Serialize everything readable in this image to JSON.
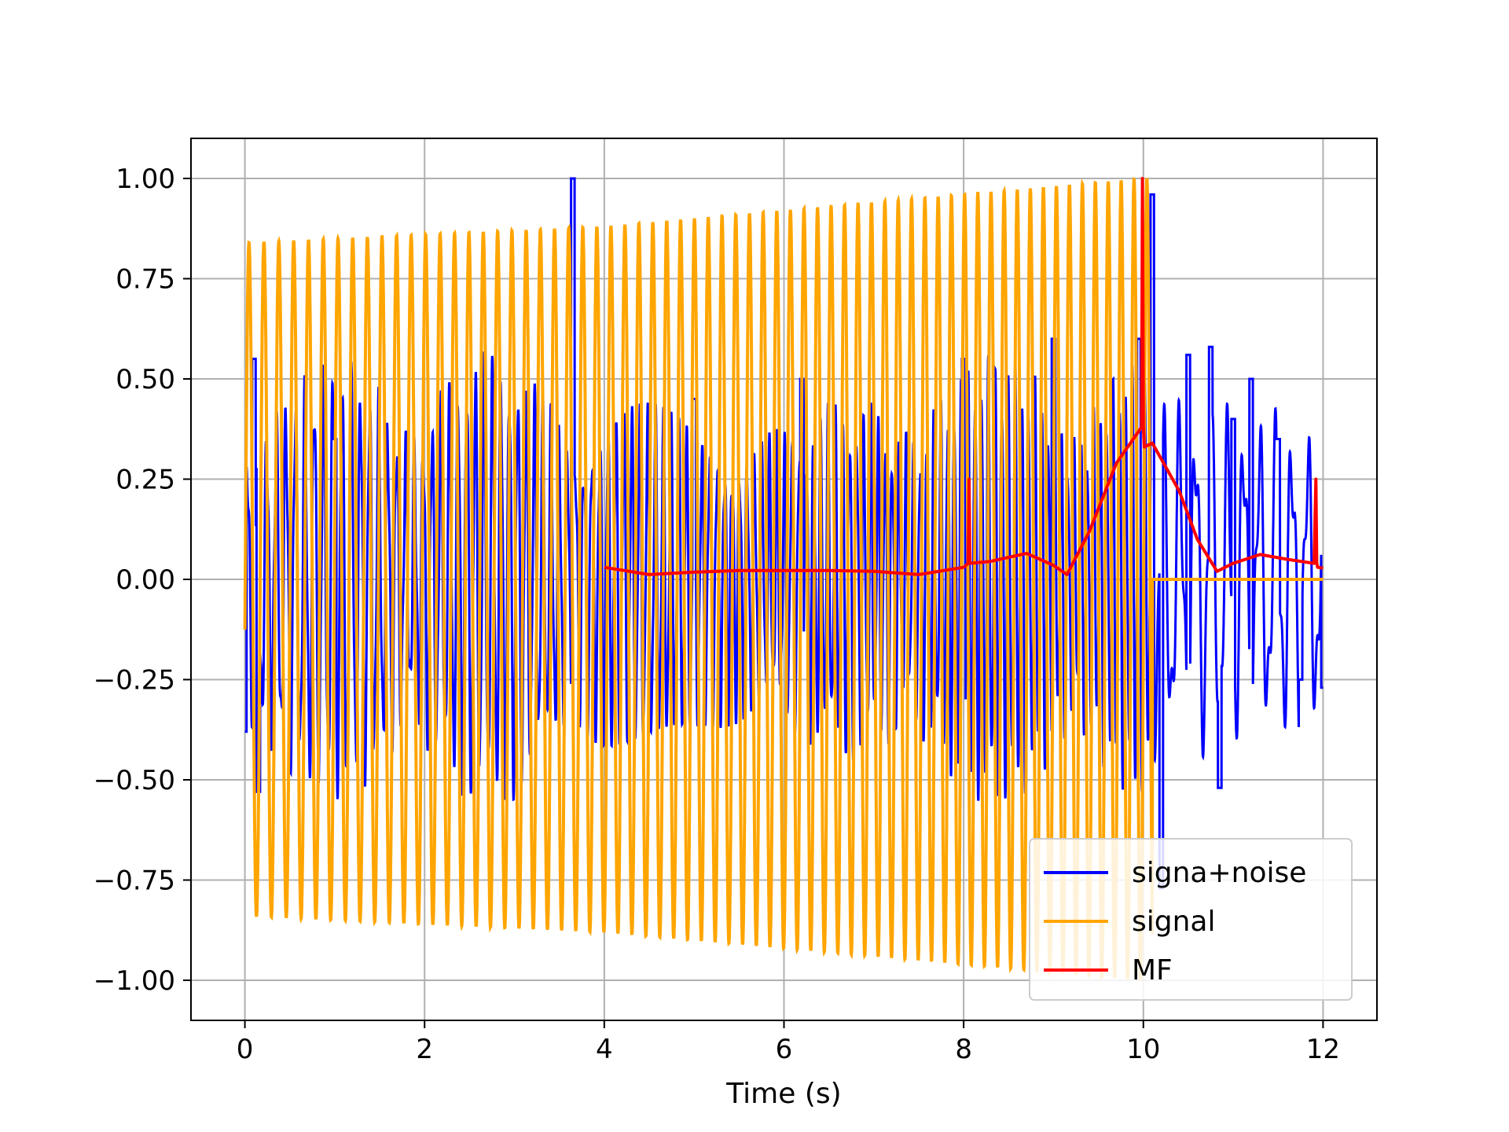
{
  "chart_data": {
    "type": "line",
    "title": "",
    "xlabel": "Time (s)",
    "ylabel": "",
    "xlim": [
      -0.6,
      12.6
    ],
    "ylim": [
      -1.1,
      1.1
    ],
    "xticks": [
      0,
      2,
      4,
      6,
      8,
      10,
      12
    ],
    "xtick_labels": [
      "0",
      "2",
      "4",
      "6",
      "8",
      "10",
      "12"
    ],
    "yticks": [
      1.0,
      0.75,
      0.5,
      0.25,
      0.0,
      -0.25,
      -0.5,
      -0.75,
      -1.0
    ],
    "ytick_labels": [
      "1.00",
      "0.75",
      "0.50",
      "0.25",
      "0.00",
      "−0.25",
      "−0.50",
      "−0.75",
      "−1.00"
    ],
    "grid": true,
    "legend_position": "lower-right",
    "series": [
      {
        "name": "signa+noise",
        "color": "#0000ff",
        "description_points": {
          "x": [
            0,
            0.1,
            0.15,
            1.0,
            3.65,
            5.0,
            6.2,
            8.0,
            9.0,
            9.95,
            10.1,
            10.2,
            10.5,
            10.75,
            10.85,
            11.0,
            11.2,
            11.5,
            11.75,
            12.0
          ],
          "y": [
            -0.38,
            0.55,
            -0.53,
            0.35,
            1.0,
            0.45,
            0.5,
            0.55,
            0.6,
            0.6,
            0.96,
            -0.77,
            0.56,
            0.58,
            -0.52,
            0.4,
            0.5,
            0.35,
            -0.25,
            -0.27
          ]
        }
      },
      {
        "name": "signal",
        "color": "#ffa500",
        "description_points": {
          "x": [
            0,
            0.05,
            2.0,
            4.0,
            6.0,
            8.0,
            10.0,
            10.1,
            12.0
          ],
          "y": [
            -0.15,
            0.84,
            0.86,
            0.88,
            0.92,
            0.96,
            1.0,
            0.0,
            0.0
          ]
        }
      },
      {
        "name": "MF",
        "color": "#ff0000",
        "x": [
          4.0,
          4.5,
          5.0,
          5.5,
          6.0,
          6.5,
          7.0,
          7.5,
          8.0,
          8.05,
          8.06,
          8.07,
          8.3,
          8.7,
          9.0,
          9.15,
          9.4,
          9.7,
          9.95,
          9.98,
          9.99,
          10.0,
          10.01,
          10.1,
          10.4,
          10.6,
          10.82,
          11.0,
          11.3,
          11.6,
          11.9,
          11.92,
          11.93,
          11.94,
          12.0
        ],
        "y": [
          0.03,
          0.012,
          0.018,
          0.022,
          0.022,
          0.022,
          0.02,
          0.012,
          0.03,
          0.04,
          0.25,
          0.04,
          0.045,
          0.065,
          0.035,
          0.012,
          0.12,
          0.29,
          0.37,
          0.38,
          1.0,
          0.38,
          0.33,
          0.34,
          0.22,
          0.1,
          0.02,
          0.04,
          0.062,
          0.05,
          0.04,
          0.25,
          0.04,
          0.03,
          0.028
        ]
      }
    ]
  }
}
